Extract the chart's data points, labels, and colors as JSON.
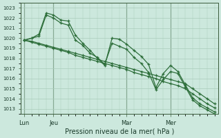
{
  "xlabel": "Pression niveau de la mer( hPa )",
  "ylim": [
    1012.5,
    1023.5
  ],
  "yticks": [
    1013,
    1014,
    1015,
    1016,
    1017,
    1018,
    1019,
    1020,
    1021,
    1022,
    1023
  ],
  "bg_color": "#cce8dd",
  "grid_color": "#aaccbb",
  "line_color": "#2d6e3a",
  "marker": "+",
  "markersize": 3.5,
  "linewidth": 0.9,
  "day_positions": [
    0,
    4,
    14,
    20
  ],
  "day_labels": [
    "Lun",
    "Jeu",
    "Mar",
    "Mer"
  ],
  "n_points": 27,
  "series": [
    [
      1019.8,
      1020.0,
      1020.4,
      1022.5,
      1022.3,
      1021.8,
      1021.7,
      1020.3,
      1019.5,
      1018.8,
      1018.0,
      1017.3,
      1020.0,
      1019.9,
      1019.4,
      1018.8,
      1018.2,
      1017.4,
      1015.1,
      1016.5,
      1017.3,
      1016.7,
      1015.4,
      1014.1,
      1013.5,
      1013.1,
      1012.7
    ],
    [
      1019.8,
      1020.0,
      1020.2,
      1022.3,
      1022.0,
      1021.5,
      1021.3,
      1019.8,
      1019.3,
      1018.5,
      1018.1,
      1017.4,
      1019.5,
      1019.2,
      1018.9,
      1018.1,
      1017.5,
      1016.6,
      1014.9,
      1015.9,
      1016.7,
      1016.5,
      1015.2,
      1013.9,
      1013.3,
      1012.9,
      1012.5
    ],
    [
      1019.8,
      1019.7,
      1019.5,
      1019.3,
      1019.1,
      1018.9,
      1018.7,
      1018.5,
      1018.3,
      1018.1,
      1017.9,
      1017.7,
      1017.5,
      1017.3,
      1017.1,
      1016.9,
      1016.7,
      1016.5,
      1016.3,
      1016.1,
      1015.9,
      1015.7,
      1015.5,
      1015.0,
      1014.5,
      1014.0,
      1013.5
    ],
    [
      1019.8,
      1019.6,
      1019.4,
      1019.2,
      1019.0,
      1018.8,
      1018.6,
      1018.3,
      1018.1,
      1017.9,
      1017.7,
      1017.5,
      1017.3,
      1017.1,
      1016.9,
      1016.6,
      1016.4,
      1016.2,
      1016.0,
      1015.7,
      1015.5,
      1015.3,
      1015.0,
      1014.5,
      1014.0,
      1013.5,
      1013.1
    ]
  ]
}
